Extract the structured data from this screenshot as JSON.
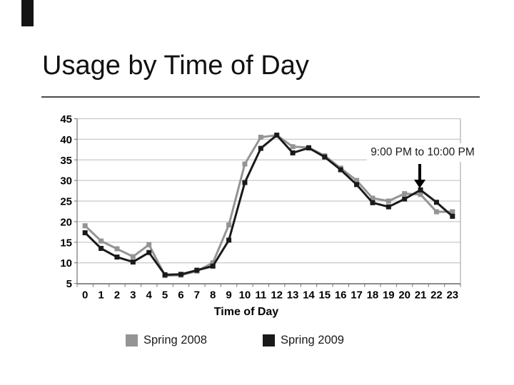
{
  "slide": {
    "title": "Usage by Time of Day"
  },
  "decor": {
    "corner_tab_color": "#141414"
  },
  "annotation": {
    "label": "9:00 PM to 10:00 PM",
    "target_hour": 21
  },
  "chart_data": {
    "type": "line",
    "x": [
      0,
      1,
      2,
      3,
      4,
      5,
      6,
      7,
      8,
      9,
      10,
      11,
      12,
      13,
      14,
      15,
      16,
      17,
      18,
      19,
      20,
      21,
      22,
      23
    ],
    "series": [
      {
        "name": "Spring 2008",
        "color": "#949494",
        "values": [
          19,
          15.3,
          13.4,
          11.5,
          14.4,
          6.9,
          7,
          8,
          10,
          19.2,
          34,
          40.5,
          41,
          38.2,
          38,
          36,
          33,
          30,
          25.7,
          25,
          26.8,
          26.6,
          22.4,
          22.4
        ]
      },
      {
        "name": "Spring 2009",
        "color": "#1a1a1a",
        "values": [
          17.3,
          13.5,
          11.4,
          10.2,
          12.5,
          7.1,
          7.2,
          8.2,
          9.2,
          15.5,
          29.5,
          37.8,
          41,
          36.7,
          37.9,
          35.7,
          32.6,
          29,
          24.6,
          23.6,
          25.5,
          27.7,
          24.7,
          21.3
        ]
      }
    ],
    "title": "",
    "xlabel": "Time of Day",
    "ylabel": "",
    "ylim": [
      5,
      45
    ],
    "y_ticks": [
      5,
      10,
      15,
      20,
      25,
      30,
      35,
      40,
      45
    ],
    "grid": true,
    "legend_position": "bottom",
    "gridline_color": "#c8c8c8",
    "axis_color": "#808080",
    "tick_label_color": "#000000"
  }
}
